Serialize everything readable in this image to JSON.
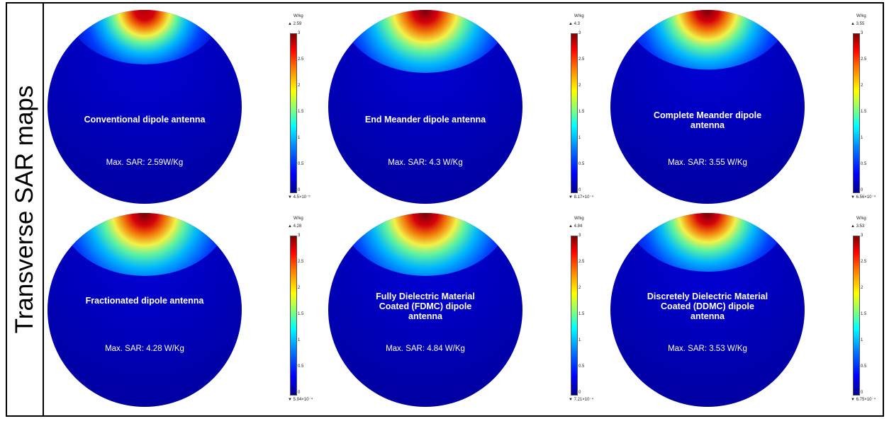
{
  "side_title": "Transverse SAR maps",
  "colors": {
    "disk_base": "#0000b8",
    "hot_core": "#8b0000"
  },
  "panels": [
    {
      "name": "Conventional dipole antenna",
      "max_sar": "Max. SAR: 2.59W/Kg",
      "unit": "W/kg",
      "max": "2.59",
      "min": "4.5×10⁻⁵",
      "hotspot_intensity": 0.6
    },
    {
      "name": "End Meander dipole antenna",
      "max_sar": "Max. SAR: 4.3 W/Kg",
      "unit": "W/kg",
      "max": "4.3",
      "min": "8.17×10⁻⁴",
      "hotspot_intensity": 1.0
    },
    {
      "name": "Complete Meander dipole antenna",
      "max_sar": "Max. SAR: 3.55 W/Kg",
      "unit": "W/kg",
      "max": "3.55",
      "min": "6.56×10⁻⁴",
      "hotspot_intensity": 0.85
    },
    {
      "name": "Fractionated dipole antenna",
      "max_sar": "Max. SAR: 4.28 W/Kg",
      "unit": "W/kg",
      "max": "4.28",
      "min": "5.94×10⁻⁴",
      "hotspot_intensity": 1.0
    },
    {
      "name": "Fully Dielectric Material Coated (FDMC) dipole antenna",
      "max_sar": "Max. SAR: 4.84 W/Kg",
      "unit": "W/kg",
      "max": "4.84",
      "min": "7.21×10⁻⁴",
      "hotspot_intensity": 1.0
    },
    {
      "name": "Discretely Dielectric Material Coated (DDMC) dipole antenna",
      "max_sar": "Max. SAR: 3.53 W/Kg",
      "unit": "W/kg",
      "max": "3.53",
      "min": "6.75×10⁻⁴",
      "hotspot_intensity": 0.8
    }
  ],
  "colorbar_ticks": [
    "3",
    "2.5",
    "2",
    "1.5",
    "1",
    "0.5",
    "0"
  ]
}
